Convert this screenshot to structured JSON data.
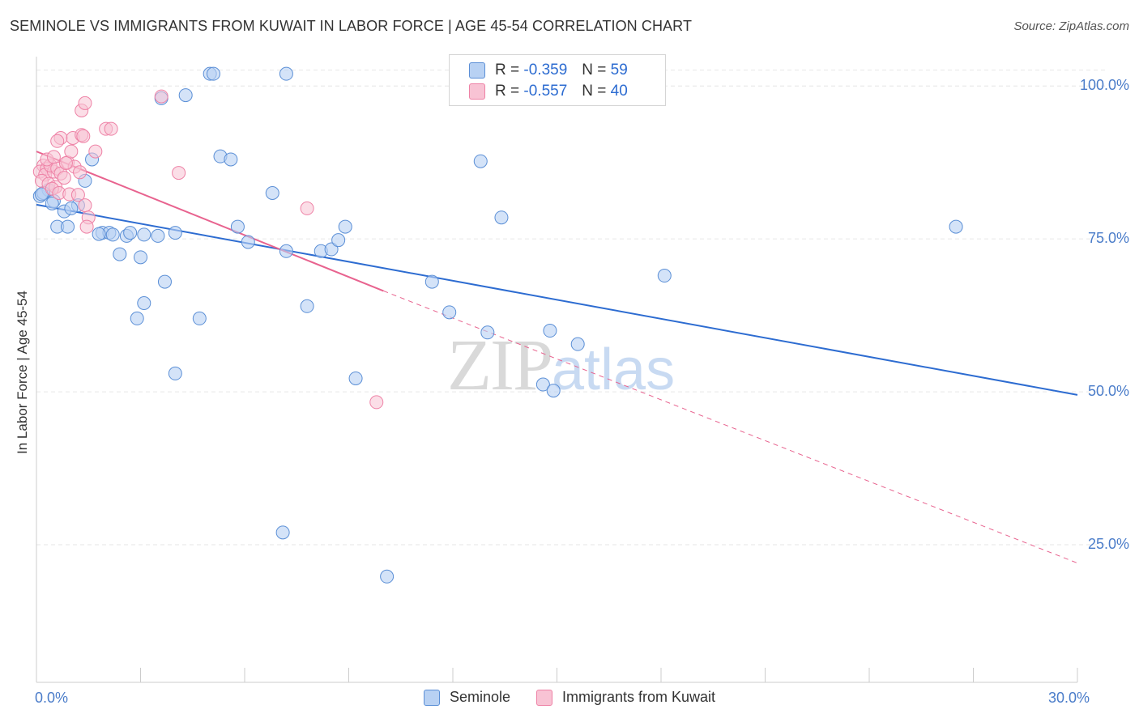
{
  "title": "SEMINOLE VS IMMIGRANTS FROM KUWAIT IN LABOR FORCE | AGE 45-54 CORRELATION CHART",
  "source": "Source: ZipAtlas.com",
  "watermark": {
    "zip": "ZIP",
    "atlas": "atlas"
  },
  "legend_top": {
    "rows": [
      {
        "r_label": "R =",
        "r_value": "-0.359",
        "n_label": "N =",
        "n_value": "59"
      },
      {
        "r_label": "R =",
        "r_value": "-0.557",
        "n_label": "N =",
        "n_value": "40"
      }
    ]
  },
  "chart_data": {
    "type": "scatter",
    "title": "SEMINOLE VS IMMIGRANTS FROM KUWAIT IN LABOR FORCE | AGE 45-54 CORRELATION CHART",
    "xlabel": "",
    "ylabel": "In Labor Force | Age 45-54",
    "xlim": [
      0,
      30
    ],
    "ylim": [
      2.5,
      104.8
    ],
    "x_tick_labels": [
      "0.0%",
      "30.0%"
    ],
    "y_ticks": [
      25,
      50,
      75,
      100
    ],
    "y_tick_labels": [
      "25.0%",
      "50.0%",
      "75.0%",
      "100.0%"
    ],
    "grid": true,
    "legend_position": "bottom",
    "colors": {
      "seminole": "#5b8fd6",
      "kuwait": "#ee82a6",
      "seminole_fill": "#b8d1f3",
      "kuwait_fill": "#f8c3d4",
      "seminole_line": "#2d6cd1",
      "kuwait_line": "#e8638f"
    },
    "series": [
      {
        "name": "Seminole",
        "r": -0.359,
        "n": 59,
        "trend": {
          "x": [
            0,
            30
          ],
          "y": [
            80.6,
            49.5
          ]
        },
        "points": [
          [
            0.1,
            82.0
          ],
          [
            0.35,
            83.0
          ],
          [
            0.2,
            82.5
          ],
          [
            0.5,
            81.2
          ],
          [
            1.2,
            80.5
          ],
          [
            0.8,
            79.5
          ],
          [
            1.4,
            84.5
          ],
          [
            0.6,
            77.0
          ],
          [
            0.9,
            77.0
          ],
          [
            1.6,
            88.0
          ],
          [
            1.9,
            76.0
          ],
          [
            2.1,
            76.0
          ],
          [
            1.8,
            75.8
          ],
          [
            2.2,
            75.7
          ],
          [
            2.6,
            75.5
          ],
          [
            3.1,
            75.7
          ],
          [
            2.4,
            72.5
          ],
          [
            3.0,
            72.0
          ],
          [
            4.0,
            76.0
          ],
          [
            3.5,
            75.5
          ],
          [
            3.6,
            98.0
          ],
          [
            4.3,
            98.5
          ],
          [
            5.0,
            102.0
          ],
          [
            5.1,
            102.0
          ],
          [
            7.2,
            102.0
          ],
          [
            5.3,
            88.5
          ],
          [
            5.6,
            88.0
          ],
          [
            6.8,
            82.5
          ],
          [
            5.8,
            77.0
          ],
          [
            6.1,
            74.5
          ],
          [
            7.2,
            73.0
          ],
          [
            8.2,
            73.0
          ],
          [
            8.5,
            73.3
          ],
          [
            8.7,
            74.8
          ],
          [
            8.9,
            77.0
          ],
          [
            3.7,
            68.0
          ],
          [
            4.7,
            62.0
          ],
          [
            3.1,
            64.5
          ],
          [
            2.9,
            62.0
          ],
          [
            7.8,
            64.0
          ],
          [
            4.0,
            53.0
          ],
          [
            9.2,
            52.2
          ],
          [
            11.4,
            68.0
          ],
          [
            11.9,
            63.0
          ],
          [
            13.0,
            59.7
          ],
          [
            14.8,
            60.0
          ],
          [
            14.6,
            51.2
          ],
          [
            14.9,
            50.2
          ],
          [
            15.6,
            57.8
          ],
          [
            18.1,
            69.0
          ],
          [
            12.8,
            87.7
          ],
          [
            13.4,
            78.5
          ],
          [
            26.5,
            77.0
          ],
          [
            7.1,
            27.0
          ],
          [
            10.1,
            19.8
          ],
          [
            0.15,
            82.3
          ],
          [
            0.45,
            80.8
          ],
          [
            1.0,
            80.0
          ],
          [
            2.7,
            76.0
          ]
        ]
      },
      {
        "name": "Immigrants from Kuwait",
        "r": -0.557,
        "n": 40,
        "trend_solid": {
          "x": [
            0,
            10
          ],
          "y": [
            89.3,
            66.5
          ]
        },
        "trend_dashed": {
          "x": [
            10,
            30
          ],
          "y": [
            66.5,
            22.0
          ]
        },
        "points": [
          [
            0.2,
            87.0
          ],
          [
            0.1,
            86.0
          ],
          [
            0.3,
            86.5
          ],
          [
            0.25,
            85.5
          ],
          [
            0.5,
            86.0
          ],
          [
            0.4,
            87.0
          ],
          [
            0.6,
            86.5
          ],
          [
            0.7,
            85.7
          ],
          [
            0.9,
            87.5
          ],
          [
            1.1,
            86.8
          ],
          [
            0.15,
            84.5
          ],
          [
            0.35,
            84.0
          ],
          [
            0.55,
            83.5
          ],
          [
            0.8,
            85.0
          ],
          [
            0.45,
            83.2
          ],
          [
            0.65,
            82.5
          ],
          [
            0.95,
            82.3
          ],
          [
            1.2,
            82.2
          ],
          [
            1.4,
            80.5
          ],
          [
            0.3,
            88.0
          ],
          [
            0.5,
            88.4
          ],
          [
            0.85,
            87.4
          ],
          [
            0.7,
            91.5
          ],
          [
            1.05,
            91.5
          ],
          [
            1.0,
            89.3
          ],
          [
            1.7,
            89.3
          ],
          [
            2.0,
            93.0
          ],
          [
            2.15,
            93.0
          ],
          [
            1.3,
            92.0
          ],
          [
            1.35,
            91.8
          ],
          [
            1.3,
            96.0
          ],
          [
            1.4,
            97.2
          ],
          [
            3.6,
            98.3
          ],
          [
            4.1,
            85.8
          ],
          [
            1.5,
            78.5
          ],
          [
            1.45,
            77.0
          ],
          [
            7.8,
            80.0
          ],
          [
            9.8,
            48.3
          ],
          [
            0.6,
            91.0
          ],
          [
            1.25,
            85.9
          ]
        ]
      }
    ]
  },
  "legend_bottom": [
    {
      "label": "Seminole"
    },
    {
      "label": "Immigrants from Kuwait"
    }
  ]
}
